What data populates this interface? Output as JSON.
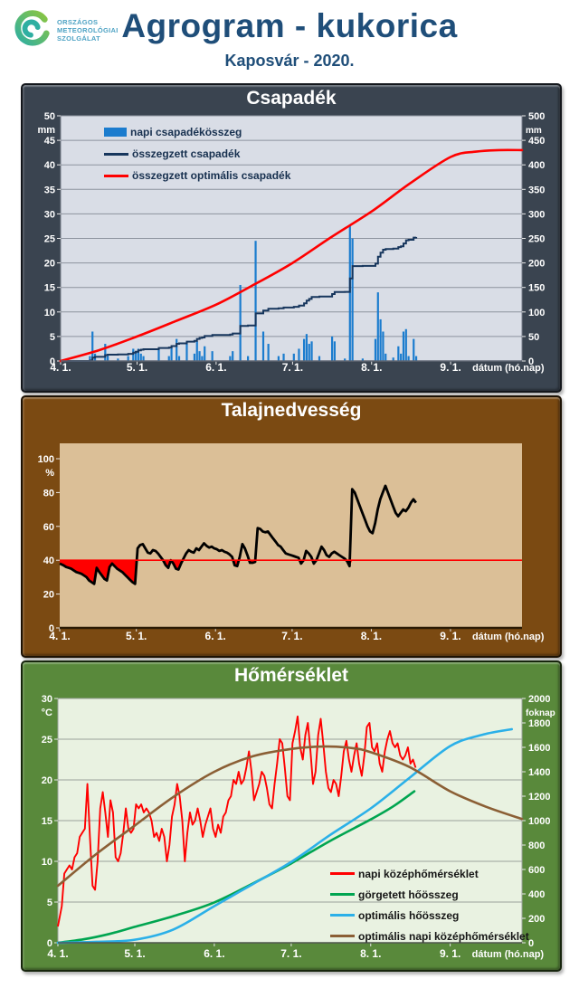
{
  "header": {
    "org_name_lines": [
      "ORSZÁGOS",
      "METEOROLÓGIAI",
      "SZOLGÁLAT"
    ],
    "title": "Agrogram - kukorica",
    "subtitle": "Kaposvár - 2020."
  },
  "colors": {
    "header_text": "#1F4E79",
    "logo_teal": "#2FAFA2",
    "logo_green": "#8CC63F",
    "logo_text": "#4FA3C4",
    "axis_text": "#FFFFFF"
  },
  "chart_data": [
    {
      "type": "bar",
      "title": "Csapadék",
      "panel_bg": "#3A4450",
      "plot_bg": "#D9DDE6",
      "plot_border": "#767D89",
      "grid_color": "#8D939E",
      "axis_line_color": "#5D6470",
      "x_domain_days": [
        0,
        181
      ],
      "x_tick_days": [
        0,
        30,
        61,
        91,
        122,
        153
      ],
      "x_tick_labels": [
        "4. 1.",
        "5. 1.",
        "6. 1.",
        "7. 1.",
        "8. 1.",
        "9. 1."
      ],
      "x_axis_label": "dátum (hó.nap)",
      "left_axis": {
        "min": 0,
        "max": 50,
        "step": 5,
        "unit": "mm"
      },
      "right_axis": {
        "min": 0,
        "max": 500,
        "step": 50,
        "unit": "mm"
      },
      "series": [
        {
          "name": "napi csapadékösszeg",
          "type": "bar",
          "axis": "left",
          "color": "#1B7CCE",
          "data_pairs": [
            [
              11,
              1
            ],
            [
              12,
              6
            ],
            [
              13,
              1.5
            ],
            [
              17,
              3.5
            ],
            [
              18,
              1
            ],
            [
              22,
              0.5
            ],
            [
              26,
              1
            ],
            [
              28,
              2.5
            ],
            [
              29,
              2
            ],
            [
              30,
              2.5
            ],
            [
              31,
              1.5
            ],
            [
              32,
              1
            ],
            [
              38,
              2.5
            ],
            [
              42,
              1
            ],
            [
              43,
              3
            ],
            [
              45,
              4.5
            ],
            [
              46,
              1
            ],
            [
              49,
              3.5
            ],
            [
              52,
              1.5
            ],
            [
              53,
              4
            ],
            [
              54,
              2
            ],
            [
              55,
              1
            ],
            [
              56,
              3
            ],
            [
              59,
              2
            ],
            [
              66,
              1
            ],
            [
              67,
              2
            ],
            [
              70,
              15.5
            ],
            [
              73,
              1
            ],
            [
              76,
              24.5
            ],
            [
              79,
              6
            ],
            [
              81,
              3.5
            ],
            [
              85,
              1
            ],
            [
              87,
              1.5
            ],
            [
              91,
              1.5
            ],
            [
              93,
              2.5
            ],
            [
              95,
              4.5
            ],
            [
              96,
              5.5
            ],
            [
              97,
              3.5
            ],
            [
              98,
              4
            ],
            [
              101,
              1
            ],
            [
              106,
              5
            ],
            [
              107,
              4
            ],
            [
              111,
              0.5
            ],
            [
              113,
              27.5
            ],
            [
              114,
              25
            ],
            [
              118,
              0.5
            ],
            [
              123,
              4.5
            ],
            [
              124,
              14
            ],
            [
              125,
              8.5
            ],
            [
              126,
              6
            ],
            [
              127,
              1.5
            ],
            [
              130,
              0.7
            ],
            [
              132,
              3
            ],
            [
              133,
              1.5
            ],
            [
              134,
              6
            ],
            [
              135,
              6.5
            ],
            [
              136,
              1
            ],
            [
              138,
              4.5
            ],
            [
              139,
              1
            ]
          ]
        },
        {
          "name": "összegzett csapadék",
          "type": "cumsum-line",
          "axis": "right",
          "color": "#17365D",
          "end_day": 139
        },
        {
          "name": "összegzett optimális  csapadék",
          "type": "smooth-line",
          "axis": "right",
          "color": "#FF0000",
          "anchors": [
            [
              0,
              0
            ],
            [
              15,
              22
            ],
            [
              30,
              50
            ],
            [
              45,
              81
            ],
            [
              61,
              115
            ],
            [
              76,
              156
            ],
            [
              91,
              200
            ],
            [
              106,
              252
            ],
            [
              122,
              305
            ],
            [
              137,
              362
            ],
            [
              153,
              416
            ],
            [
              163,
              427
            ],
            [
              172,
              430
            ],
            [
              181,
              430
            ]
          ]
        }
      ]
    },
    {
      "type": "line",
      "title": "Talajnedvesség",
      "panel_bg": "#7B4A12",
      "plot_bg": "#DBBF97",
      "grid_color": null,
      "axis_line_color": "#2A1A05",
      "x_domain_days": [
        0,
        181
      ],
      "x_tick_days": [
        0,
        30,
        61,
        91,
        122,
        153
      ],
      "x_tick_labels": [
        "4. 1.",
        "5. 1.",
        "6. 1.",
        "7. 1.",
        "8. 1.",
        "9. 1."
      ],
      "x_axis_label": "dátum (hó.nap)",
      "left_axis": {
        "min": 0,
        "max": 100,
        "step": 20,
        "unit": "%"
      },
      "threshold": {
        "value": 40,
        "color": "#FF0000"
      },
      "series": [
        {
          "type": "daily-line",
          "axis": "left",
          "color": "#000000",
          "start_day": 0,
          "values": [
            38,
            37,
            36,
            35.5,
            35,
            34,
            33,
            32.5,
            32,
            31,
            30,
            28,
            27,
            26,
            35.5,
            33,
            31,
            29,
            28,
            36,
            38,
            36.5,
            35,
            34,
            33,
            31.5,
            30,
            28.5,
            27,
            26,
            47,
            49,
            49.5,
            47,
            44.5,
            44,
            46,
            45.5,
            44,
            42,
            40,
            37,
            35.5,
            40,
            38,
            35,
            34.5,
            38,
            41,
            44,
            46,
            45,
            44.5,
            47,
            46,
            48,
            50,
            48.5,
            47.5,
            48,
            47,
            46.5,
            45.5,
            46,
            45,
            44.5,
            43.5,
            42,
            37,
            36.5,
            42,
            49.5,
            47,
            43,
            38.5,
            38.5,
            39,
            59,
            58.5,
            57,
            56.5,
            57,
            55,
            53,
            51,
            49,
            48,
            46,
            44,
            43.5,
            43,
            42.5,
            42,
            41.5,
            38,
            40,
            45.5,
            44,
            42,
            38,
            40,
            44,
            48,
            46,
            43,
            42,
            44,
            45,
            44,
            43,
            42,
            41,
            39.5,
            36.5,
            82,
            80,
            76,
            72,
            68,
            64,
            60,
            57,
            56,
            62,
            70,
            76,
            80,
            84,
            80,
            76,
            72,
            68,
            66,
            68,
            70,
            69,
            71,
            74,
            76,
            74
          ]
        }
      ]
    },
    {
      "type": "multi-line",
      "title": "Hőmérséklet",
      "panel_bg": "#59893B",
      "plot_bg": "#E9F2E1",
      "plot_border": "#9AA29B",
      "grid_color": "#9AA29B",
      "axis_line_color": "#4F554C",
      "x_domain_days": [
        0,
        181
      ],
      "x_tick_days": [
        0,
        30,
        61,
        91,
        122,
        153
      ],
      "x_tick_labels": [
        "4. 1.",
        "5. 1.",
        "6. 1.",
        "7. 1.",
        "8. 1.",
        "9. 1."
      ],
      "x_axis_label": "dátum (hó.nap)",
      "left_axis": {
        "min": 0,
        "max": 30,
        "step": 5,
        "unit": "°C"
      },
      "right_axis": {
        "min": 0,
        "max": 2000,
        "step": 200,
        "unit": "foknap"
      },
      "series": [
        {
          "name": "napi középhőmérséklet",
          "type": "daily-line",
          "axis": "left",
          "color": "#FF0000",
          "start_day": 0,
          "values": [
            2,
            4.5,
            8.5,
            9,
            9.5,
            9,
            10.5,
            11,
            13,
            13.5,
            14,
            19.5,
            13,
            7,
            6.5,
            10,
            16.5,
            18.5,
            16,
            13,
            17.5,
            16,
            10.5,
            10,
            11,
            13.5,
            16.5,
            14,
            13.5,
            14,
            17,
            16.5,
            17,
            16,
            16.5,
            16,
            15,
            13,
            13.5,
            12.5,
            14,
            13,
            10,
            12,
            15.5,
            17,
            19.5,
            18,
            15,
            10,
            13.5,
            16,
            14.5,
            15,
            16.5,
            15,
            13,
            14.5,
            15.5,
            16.5,
            14,
            13,
            14.5,
            13.5,
            15.5,
            16,
            17.5,
            18,
            20,
            19.5,
            21,
            19.5,
            20,
            21.5,
            23.5,
            21,
            17.5,
            18.5,
            19.5,
            21,
            20.5,
            19,
            17,
            16.5,
            19.5,
            22,
            25,
            24.5,
            21.5,
            18,
            17.5,
            24.5,
            26,
            27.8,
            24,
            22.5,
            25.5,
            27,
            23.5,
            19.5,
            21,
            25.5,
            27.5,
            24.5,
            21,
            19,
            18.5,
            20,
            19.5,
            18,
            20.5,
            23.5,
            24.8,
            22.5,
            21,
            23,
            24.5,
            22,
            20.5,
            23,
            26.5,
            27,
            24,
            23.5,
            24.5,
            22,
            21,
            23.5,
            25,
            26,
            24.5,
            24,
            24.5,
            23,
            22.5,
            23,
            24,
            22,
            22.5,
            21.5
          ]
        },
        {
          "name": "görgetett hőösszeg",
          "type": "smooth-line",
          "axis": "right",
          "color": "#00A550",
          "anchors": [
            [
              0,
              0
            ],
            [
              10,
              28
            ],
            [
              20,
              72
            ],
            [
              30,
              130
            ],
            [
              45,
              218
            ],
            [
              61,
              330
            ],
            [
              76,
              485
            ],
            [
              91,
              650
            ],
            [
              106,
              832
            ],
            [
              122,
              1010
            ],
            [
              131,
              1120
            ],
            [
              139,
              1240
            ]
          ]
        },
        {
          "name": "optimális hőösszeg",
          "type": "smooth-line",
          "axis": "right",
          "color": "#2BB0E8",
          "anchors": [
            [
              0,
              0
            ],
            [
              15,
              8
            ],
            [
              30,
              25
            ],
            [
              45,
              108
            ],
            [
              61,
              300
            ],
            [
              76,
              480
            ],
            [
              91,
              662
            ],
            [
              106,
              880
            ],
            [
              122,
              1100
            ],
            [
              137,
              1348
            ],
            [
              153,
              1610
            ],
            [
              166,
              1705
            ],
            [
              177,
              1748
            ]
          ]
        },
        {
          "name": "optimális napi középhőmérséklet",
          "type": "smooth-line",
          "axis": "left",
          "color": "#8B5F35",
          "anchors": [
            [
              0,
              7
            ],
            [
              15,
              10.9
            ],
            [
              30,
              14.4
            ],
            [
              45,
              17.9
            ],
            [
              61,
              21
            ],
            [
              76,
              22.9
            ],
            [
              91,
              23.8
            ],
            [
              104,
              24.1
            ],
            [
              115,
              23.9
            ],
            [
              122,
              23.4
            ],
            [
              137,
              21.6
            ],
            [
              153,
              18.6
            ],
            [
              167,
              16.7
            ],
            [
              181,
              15.2
            ]
          ]
        }
      ]
    }
  ]
}
